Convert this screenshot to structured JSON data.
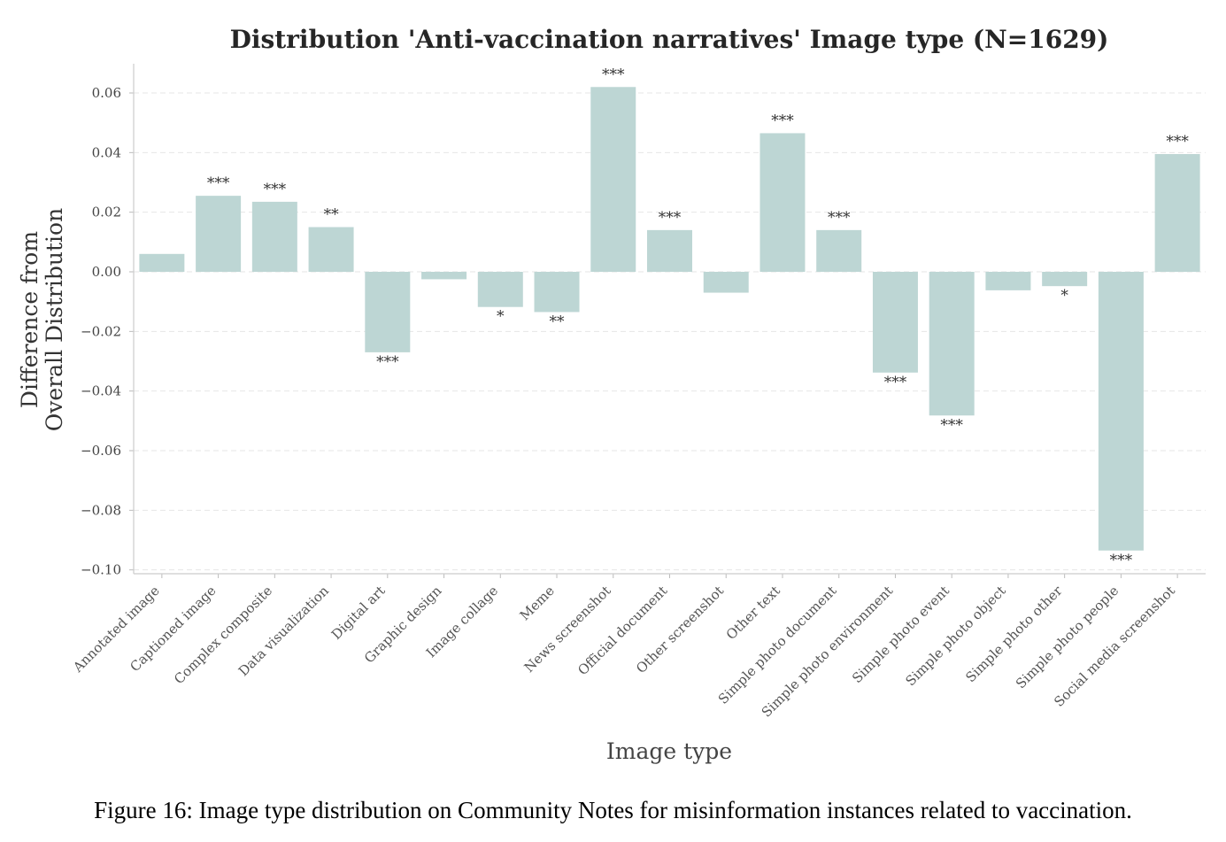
{
  "chart_data": {
    "type": "bar",
    "title": "Distribution 'Anti-vaccination narratives' Image type (N=1629)",
    "xlabel": "Image type",
    "ylabel_lines": [
      "Difference from",
      "Overall Distribution"
    ],
    "ylim": [
      -0.101,
      0.069
    ],
    "yticks": [
      0.06,
      0.04,
      0.02,
      0.0,
      -0.02,
      -0.04,
      -0.06,
      -0.08,
      -0.1
    ],
    "ytick_labels": [
      "0.06",
      "0.04",
      "0.02",
      "0.00",
      "−0.02",
      "−0.04",
      "−0.06",
      "−0.08",
      "−0.10"
    ],
    "grid": true,
    "bar_color": "#bdd6d4",
    "categories": [
      "Annotated image",
      "Captioned image",
      "Complex composite",
      "Data visualization",
      "Digital art",
      "Graphic design",
      "Image collage",
      "Meme",
      "News screenshot",
      "Official document",
      "Other screenshot",
      "Other text",
      "Simple photo document",
      "Simple photo environment",
      "Simple photo event",
      "Simple photo object",
      "Simple photo other",
      "Simple photo people",
      "Social media screenshot"
    ],
    "values": [
      0.006,
      0.0255,
      0.0235,
      0.015,
      -0.027,
      -0.0025,
      -0.0118,
      -0.0135,
      0.062,
      0.014,
      -0.007,
      0.0465,
      0.014,
      -0.0338,
      -0.0482,
      -0.0062,
      -0.0048,
      -0.0935,
      0.0395
    ],
    "significance": [
      "",
      "***",
      "***",
      "**",
      "***",
      "",
      "*",
      "**",
      "***",
      "***",
      "",
      "***",
      "***",
      "***",
      "***",
      "",
      "*",
      "***",
      "***"
    ]
  },
  "caption": "Figure 16: Image type distribution on Community Notes for misinformation instances related to vaccination."
}
